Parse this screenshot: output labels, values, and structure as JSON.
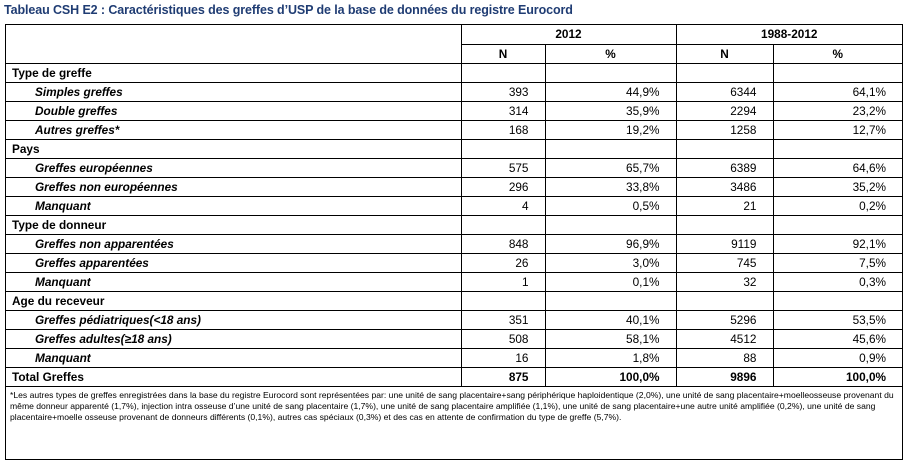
{
  "title": "Tableau CSH E2 : Caractéristiques des greffes d’USP de la base de données du registre Eurocord",
  "header": {
    "periods": [
      "2012",
      "1988-2012"
    ],
    "n_label": "N",
    "pct_label": "%"
  },
  "sections": [
    {
      "label": "Type de greffe",
      "rows": [
        {
          "label": "Simples greffes",
          "n1": "393",
          "p1": "44,9%",
          "n2": "6344",
          "p2": "64,1%"
        },
        {
          "label": "Double greffes",
          "n1": "314",
          "p1": "35,9%",
          "n2": "2294",
          "p2": "23,2%"
        },
        {
          "label": "Autres greffes*",
          "n1": "168",
          "p1": "19,2%",
          "n2": "1258",
          "p2": "12,7%"
        }
      ]
    },
    {
      "label": "Pays",
      "rows": [
        {
          "label": "Greffes européennes",
          "n1": "575",
          "p1": "65,7%",
          "n2": "6389",
          "p2": "64,6%"
        },
        {
          "label": "Greffes non européennes",
          "n1": "296",
          "p1": "33,8%",
          "n2": "3486",
          "p2": "35,2%"
        },
        {
          "label": "Manquant",
          "n1": "4",
          "p1": "0,5%",
          "n2": "21",
          "p2": "0,2%"
        }
      ]
    },
    {
      "label": "Type de donneur",
      "rows": [
        {
          "label": "Greffes non apparentées",
          "n1": "848",
          "p1": "96,9%",
          "n2": "9119",
          "p2": "92,1%"
        },
        {
          "label": "Greffes apparentées",
          "n1": "26",
          "p1": "3,0%",
          "n2": "745",
          "p2": "7,5%"
        },
        {
          "label": "Manquant",
          "n1": "1",
          "p1": "0,1%",
          "n2": "32",
          "p2": "0,3%"
        }
      ]
    },
    {
      "label": "Age du receveur",
      "rows": [
        {
          "label": "Greffes pédiatriques(<18 ans)",
          "n1": "351",
          "p1": "40,1%",
          "n2": "5296",
          "p2": "53,5%"
        },
        {
          "label": "Greffes adultes(≥18 ans)",
          "n1": "508",
          "p1": "58,1%",
          "n2": "4512",
          "p2": "45,6%"
        },
        {
          "label": "Manquant",
          "n1": "16",
          "p1": "1,8%",
          "n2": "88",
          "p2": "0,9%"
        }
      ]
    }
  ],
  "total": {
    "label": "Total Greffes",
    "n1": "875",
    "p1": "100,0%",
    "n2": "9896",
    "p2": "100,0%"
  },
  "footnote": "*Les autres types de greffes enregistrées dans la base du registre Eurocord sont représentées par: une unité de sang placentaire+sang périphérique haploidentique (2,0%), une unité de sang placentaire+moelleosseuse provenant du même donneur apparenté (1,7%), injection intra osseuse d’une unité de sang placentaire (1,7%), une unité de sang placentaire amplifiée (1,1%), une unité de sang placentaire+une autre unité amplifiée (0,2%), une unité de sang placentaire+moelle osseuse provenant de donneurs différents (0,1%), autres cas spéciaux (0,3%) et des cas en attente de confirmation du type de greffe (5,7%)."
}
